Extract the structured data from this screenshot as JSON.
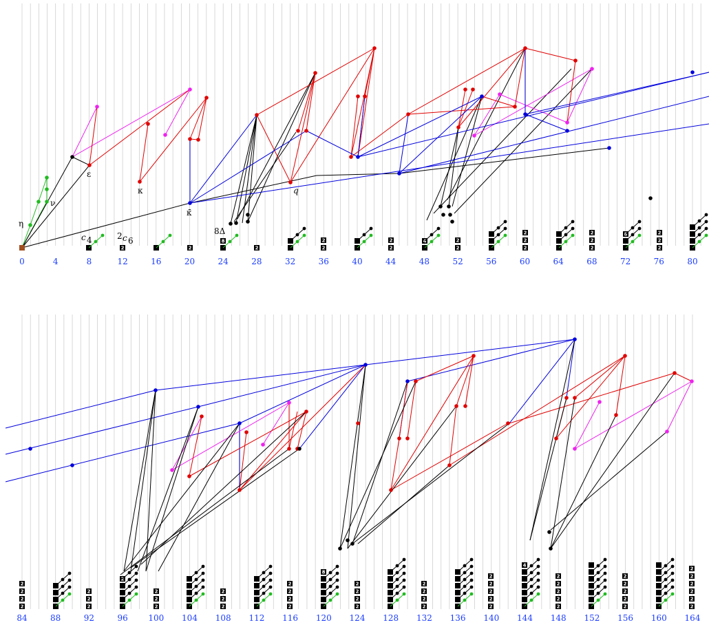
{
  "chart_data": {
    "type": "diagram",
    "rows": [
      {
        "ticks": [
          "0",
          "4",
          "8",
          "12",
          "16",
          "20",
          "24",
          "28",
          "32",
          "36",
          "40",
          "44",
          "48",
          "52",
          "56",
          "60",
          "64",
          "68",
          "72",
          "76",
          "80"
        ]
      },
      {
        "ticks": [
          "84",
          "88",
          "92",
          "96",
          "100",
          "104",
          "108",
          "112",
          "116",
          "120",
          "124",
          "128",
          "132",
          "136",
          "140",
          "144",
          "148",
          "152",
          "156",
          "160",
          "164"
        ]
      }
    ],
    "annotations": [
      "η",
      "ν",
      "ε",
      "κ",
      "κ̄",
      "q",
      "c",
      "4",
      "2",
      "c",
      "6",
      "8Δ"
    ],
    "badges": [
      "8",
      "2",
      "4"
    ],
    "colors": {
      "gridline": "#c8c8c8",
      "axis_label": "#1a3cff",
      "black": "#000000",
      "green": "#22bb22",
      "red": "#e00000",
      "blue": "#0000dd",
      "magenta": "#ee22ee",
      "origin": "#a05020"
    }
  }
}
